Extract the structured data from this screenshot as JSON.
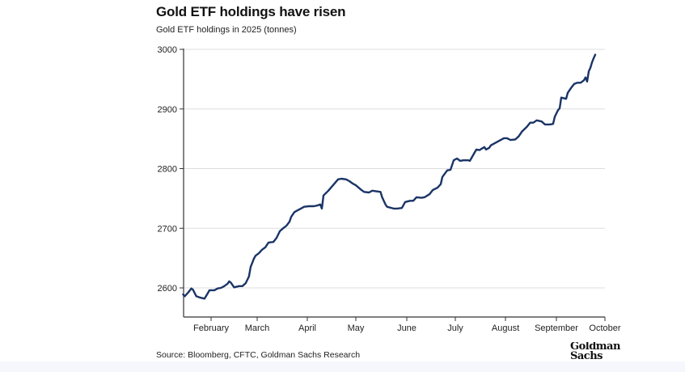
{
  "header": {
    "title": "Gold ETF holdings have risen",
    "subtitle": "Gold ETF holdings in 2025 (tonnes)"
  },
  "footer": {
    "source": "Source: Bloomberg, CFTC, Goldman Sachs Research",
    "logo_text": "Goldman Sachs"
  },
  "colors": {
    "line": "#1a3466",
    "grid": "#dddddd",
    "axis": "#333333"
  },
  "chart_data": {
    "type": "line",
    "title": "Gold ETF holdings have risen",
    "subtitle": "Gold ETF holdings in 2025 (tonnes)",
    "xlabel": "",
    "ylabel": "",
    "ylim": [
      2550,
      3000
    ],
    "xlim_day_of_year": [
      15,
      274
    ],
    "grid": true,
    "yticks": [
      2600,
      2700,
      2800,
      2900,
      3000
    ],
    "xticks": [
      {
        "label": "February",
        "day": 32
      },
      {
        "label": "March",
        "day": 60
      },
      {
        "label": "April",
        "day": 91
      },
      {
        "label": "May",
        "day": 121
      },
      {
        "label": "June",
        "day": 152
      },
      {
        "label": "July",
        "day": 182
      },
      {
        "label": "August",
        "day": 213
      },
      {
        "label": "September",
        "day": 244
      },
      {
        "label": "October",
        "day": 274
      }
    ],
    "series": [
      {
        "name": "Gold ETF holdings (tonnes)",
        "x_day_of_year": [
          15,
          16,
          18,
          20,
          21,
          23,
          25,
          28,
          30,
          31,
          34,
          36,
          38,
          40,
          42,
          43,
          44,
          46,
          49,
          51,
          53,
          55,
          56,
          58,
          59,
          61,
          63,
          65,
          67,
          70,
          72,
          74,
          76,
          78,
          80,
          81,
          83,
          85,
          87,
          89,
          92,
          95,
          97,
          99,
          100,
          101,
          104,
          110,
          112,
          115,
          117,
          119,
          121,
          124,
          126,
          129,
          131,
          136,
          137,
          139,
          140,
          144,
          146,
          149,
          151,
          154,
          156,
          158,
          161,
          163,
          166,
          168,
          171,
          173,
          174,
          177,
          179,
          181,
          183,
          185,
          187,
          190,
          191,
          195,
          197,
          198,
          200,
          201,
          203,
          204,
          208,
          212,
          214,
          216,
          219,
          221,
          223,
          226,
          228,
          230,
          232,
          235,
          237,
          240,
          242,
          243,
          245,
          246,
          247,
          250,
          251,
          253,
          255,
          257,
          259,
          261,
          262,
          263,
          264,
          265,
          266,
          267,
          268
        ],
        "values": [
          2589,
          2586,
          2592,
          2599,
          2597,
          2586,
          2584,
          2582,
          2591,
          2596,
          2596,
          2599,
          2600,
          2603,
          2607,
          2611,
          2609,
          2601,
          2603,
          2603,
          2608,
          2619,
          2635,
          2649,
          2654,
          2658,
          2664,
          2668,
          2676,
          2677,
          2684,
          2695,
          2700,
          2704,
          2711,
          2719,
          2727,
          2730,
          2733,
          2736,
          2737,
          2737,
          2738,
          2740,
          2733,
          2755,
          2763,
          2782,
          2783,
          2782,
          2779,
          2775,
          2772,
          2765,
          2761,
          2760,
          2763,
          2761,
          2752,
          2740,
          2736,
          2733,
          2733,
          2734,
          2744,
          2746,
          2746,
          2752,
          2751,
          2752,
          2757,
          2764,
          2768,
          2774,
          2786,
          2797,
          2798,
          2814,
          2817,
          2813,
          2814,
          2814,
          2813,
          2832,
          2831,
          2833,
          2836,
          2832,
          2835,
          2839,
          2845,
          2851,
          2851,
          2848,
          2849,
          2854,
          2862,
          2870,
          2877,
          2877,
          2881,
          2879,
          2874,
          2874,
          2875,
          2887,
          2898,
          2901,
          2919,
          2917,
          2927,
          2935,
          2942,
          2944,
          2944,
          2948,
          2953,
          2946,
          2963,
          2969,
          2978,
          2985,
          2991
        ]
      }
    ]
  }
}
